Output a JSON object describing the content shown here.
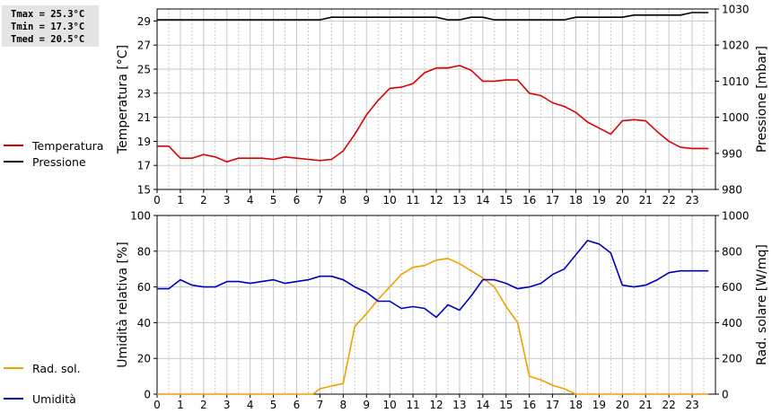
{
  "stats": {
    "tmax": "Tmax = 25.3°C",
    "tmin": "Tmin = 17.3°C",
    "tmed": "Tmed = 20.5°C"
  },
  "colors": {
    "temperatura": "#dd0000",
    "pressione": "#000000",
    "umidita": "#0000c0",
    "rad_sol": "#f0a000",
    "grid": "#c8c8c8"
  },
  "chart_data": [
    {
      "type": "line",
      "xlim": [
        0,
        24
      ],
      "x_ticks": [
        0,
        1,
        2,
        3,
        4,
        5,
        6,
        7,
        8,
        9,
        10,
        11,
        12,
        13,
        14,
        15,
        16,
        17,
        18,
        19,
        20,
        21,
        22,
        23
      ],
      "ylabel": "Temperatura [°C]",
      "ylim": [
        15,
        30
      ],
      "y_ticks": [
        15,
        17,
        19,
        21,
        23,
        25,
        27,
        29
      ],
      "y2label": "Pressione [mbar]",
      "y2lim": [
        980,
        1030
      ],
      "y2_ticks": [
        980,
        990,
        1000,
        1010,
        1020,
        1030
      ],
      "grid": true,
      "legend_position": "left",
      "series": [
        {
          "name": "Temperatura",
          "axis": "left",
          "color": "#dd0000",
          "points": [
            [
              0,
              18.6
            ],
            [
              0.5,
              18.6
            ],
            [
              1,
              17.6
            ],
            [
              1.5,
              17.6
            ],
            [
              2,
              17.9
            ],
            [
              2.5,
              17.7
            ],
            [
              3,
              17.3
            ],
            [
              3.5,
              17.6
            ],
            [
              4,
              17.6
            ],
            [
              4.5,
              17.6
            ],
            [
              5,
              17.5
            ],
            [
              5.5,
              17.7
            ],
            [
              6,
              17.6
            ],
            [
              6.5,
              17.5
            ],
            [
              7,
              17.4
            ],
            [
              7.5,
              17.5
            ],
            [
              8,
              18.2
            ],
            [
              8.5,
              19.6
            ],
            [
              9,
              21.2
            ],
            [
              9.5,
              22.4
            ],
            [
              10,
              23.4
            ],
            [
              10.5,
              23.5
            ],
            [
              11,
              23.8
            ],
            [
              11.5,
              24.7
            ],
            [
              12,
              25.1
            ],
            [
              12.5,
              25.1
            ],
            [
              13,
              25.3
            ],
            [
              13.5,
              24.9
            ],
            [
              14,
              24.0
            ],
            [
              14.5,
              24.0
            ],
            [
              15,
              24.1
            ],
            [
              15.5,
              24.1
            ],
            [
              16,
              23.0
            ],
            [
              16.5,
              22.8
            ],
            [
              17,
              22.2
            ],
            [
              17.5,
              21.9
            ],
            [
              18,
              21.4
            ],
            [
              18.5,
              20.6
            ],
            [
              19,
              20.1
            ],
            [
              19.5,
              19.6
            ],
            [
              20,
              20.7
            ],
            [
              20.5,
              20.8
            ],
            [
              21,
              20.7
            ],
            [
              21.5,
              19.8
            ],
            [
              22,
              19.0
            ],
            [
              22.5,
              18.5
            ],
            [
              23,
              18.4
            ],
            [
              23.7,
              18.4
            ]
          ]
        },
        {
          "name": "Pressione",
          "axis": "right",
          "color": "#000000",
          "points": [
            [
              0,
              1027
            ],
            [
              1,
              1027
            ],
            [
              2,
              1027
            ],
            [
              3,
              1027
            ],
            [
              4,
              1027
            ],
            [
              5,
              1027
            ],
            [
              6,
              1027
            ],
            [
              7,
              1027
            ],
            [
              7.5,
              1027.7
            ],
            [
              8,
              1027.7
            ],
            [
              9,
              1027.7
            ],
            [
              10,
              1027.7
            ],
            [
              11,
              1027.7
            ],
            [
              12,
              1027.7
            ],
            [
              12.5,
              1027
            ],
            [
              13,
              1027
            ],
            [
              13.5,
              1027.7
            ],
            [
              14,
              1027.7
            ],
            [
              14.5,
              1027
            ],
            [
              15,
              1027
            ],
            [
              16,
              1027
            ],
            [
              17,
              1027
            ],
            [
              17.5,
              1027
            ],
            [
              18,
              1027.7
            ],
            [
              19,
              1027.7
            ],
            [
              20,
              1027.7
            ],
            [
              20.5,
              1028.3
            ],
            [
              21,
              1028.3
            ],
            [
              22,
              1028.3
            ],
            [
              22.5,
              1028.3
            ],
            [
              23,
              1029
            ],
            [
              23.7,
              1029
            ]
          ]
        }
      ]
    },
    {
      "type": "line",
      "xlim": [
        0,
        24
      ],
      "x_ticks": [
        0,
        1,
        2,
        3,
        4,
        5,
        6,
        7,
        8,
        9,
        10,
        11,
        12,
        13,
        14,
        15,
        16,
        17,
        18,
        19,
        20,
        21,
        22,
        23
      ],
      "ylabel": "Umidità relativa [%]",
      "ylim": [
        0,
        100
      ],
      "y_ticks": [
        0,
        20,
        40,
        60,
        80,
        100
      ],
      "y2label": "Rad. solare [W/mq]",
      "y2lim": [
        0,
        1000
      ],
      "y2_ticks": [
        0,
        200,
        400,
        600,
        800,
        1000
      ],
      "grid": true,
      "legend_position": "left",
      "series": [
        {
          "name": "Umidità",
          "axis": "left",
          "color": "#0000c0",
          "points": [
            [
              0,
              59
            ],
            [
              0.5,
              59
            ],
            [
              1,
              64
            ],
            [
              1.5,
              61
            ],
            [
              2,
              60
            ],
            [
              2.5,
              60
            ],
            [
              3,
              63
            ],
            [
              3.5,
              63
            ],
            [
              4,
              62
            ],
            [
              4.5,
              63
            ],
            [
              5,
              64
            ],
            [
              5.5,
              62
            ],
            [
              6,
              63
            ],
            [
              6.5,
              64
            ],
            [
              7,
              66
            ],
            [
              7.5,
              66
            ],
            [
              8,
              64
            ],
            [
              8.5,
              60
            ],
            [
              9,
              57
            ],
            [
              9.5,
              52
            ],
            [
              10,
              52
            ],
            [
              10.5,
              48
            ],
            [
              11,
              49
            ],
            [
              11.5,
              48
            ],
            [
              12,
              43
            ],
            [
              12.5,
              50
            ],
            [
              13,
              47
            ],
            [
              13.5,
              55
            ],
            [
              14,
              64
            ],
            [
              14.5,
              64
            ],
            [
              15,
              62
            ],
            [
              15.5,
              59
            ],
            [
              16,
              60
            ],
            [
              16.5,
              62
            ],
            [
              17,
              67
            ],
            [
              17.5,
              70
            ],
            [
              18,
              78
            ],
            [
              18.5,
              86
            ],
            [
              19,
              84
            ],
            [
              19.5,
              79
            ],
            [
              20,
              61
            ],
            [
              20.5,
              60
            ],
            [
              21,
              61
            ],
            [
              21.5,
              64
            ],
            [
              22,
              68
            ],
            [
              22.5,
              69
            ],
            [
              23,
              69
            ],
            [
              23.7,
              69
            ]
          ]
        },
        {
          "name": "Rad. sol.",
          "axis": "right",
          "color": "#f0a000",
          "points": [
            [
              0,
              0
            ],
            [
              1,
              0
            ],
            [
              2,
              0
            ],
            [
              3,
              0
            ],
            [
              4,
              0
            ],
            [
              5,
              0
            ],
            [
              6,
              0
            ],
            [
              6.7,
              0
            ],
            [
              7,
              30
            ],
            [
              7.5,
              45
            ],
            [
              8,
              60
            ],
            [
              8.5,
              380
            ],
            [
              9,
              450
            ],
            [
              9.5,
              530
            ],
            [
              10,
              600
            ],
            [
              10.5,
              670
            ],
            [
              11,
              710
            ],
            [
              11.5,
              720
            ],
            [
              12,
              750
            ],
            [
              12.5,
              760
            ],
            [
              13,
              730
            ],
            [
              13.5,
              690
            ],
            [
              14,
              650
            ],
            [
              14.5,
              600
            ],
            [
              15,
              490
            ],
            [
              15.5,
              400
            ],
            [
              16,
              100
            ],
            [
              16.5,
              80
            ],
            [
              17,
              50
            ],
            [
              17.5,
              30
            ],
            [
              18,
              0
            ],
            [
              19,
              0
            ],
            [
              20,
              0
            ],
            [
              21,
              0
            ],
            [
              22,
              0
            ],
            [
              23,
              0
            ],
            [
              23.7,
              0
            ]
          ]
        }
      ]
    }
  ]
}
